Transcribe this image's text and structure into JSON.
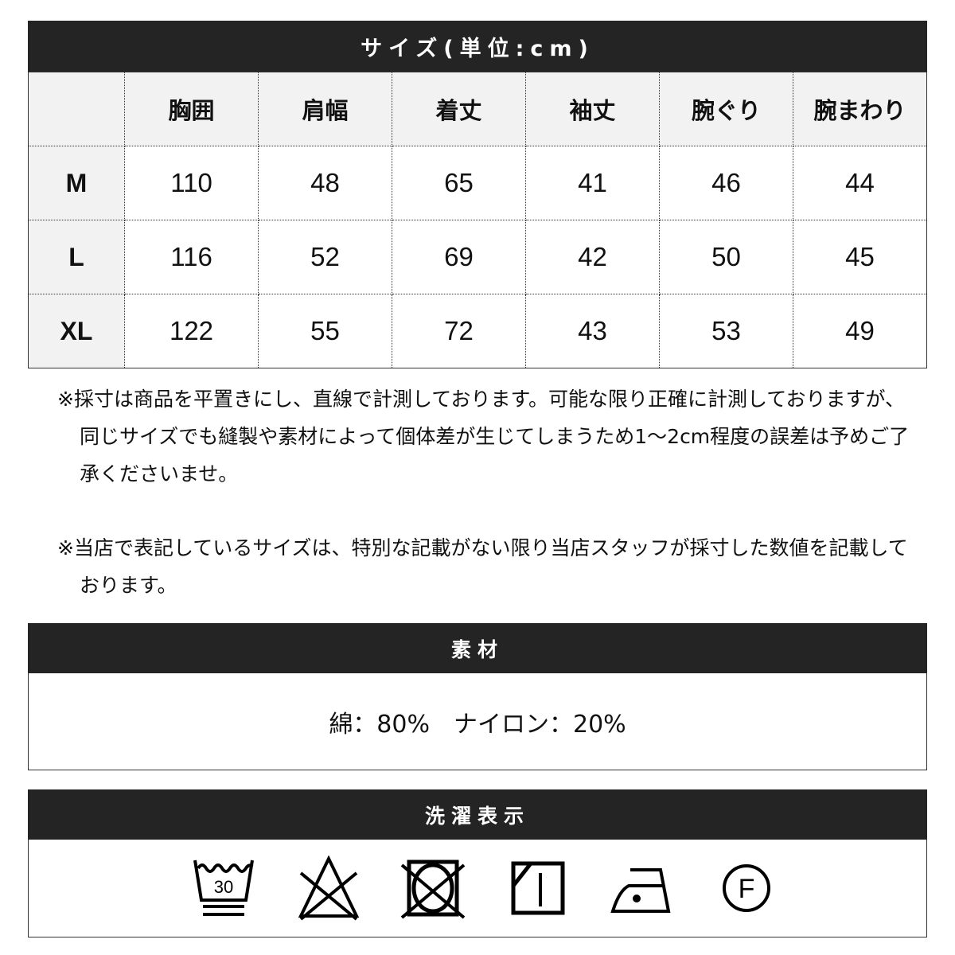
{
  "size_section": {
    "title": "サイズ(単位:cm)",
    "columns": [
      "",
      "胸囲",
      "肩幅",
      "着丈",
      "袖丈",
      "腕ぐり",
      "腕まわり"
    ],
    "rows": [
      {
        "size": "M",
        "values": [
          "110",
          "48",
          "65",
          "41",
          "46",
          "44"
        ]
      },
      {
        "size": "L",
        "values": [
          "116",
          "52",
          "69",
          "42",
          "50",
          "45"
        ]
      },
      {
        "size": "XL",
        "values": [
          "122",
          "55",
          "72",
          "43",
          "53",
          "49"
        ]
      }
    ]
  },
  "notes": [
    "※採寸は商品を平置きにし、直線で計測しております。可能な限り正確に計測しておりますが、同じサイズでも縫製や素材によって個体差が生じてしまうため1～2cm程度の誤差は予めご了承くださいませ。",
    "※当店で表記しているサイズは、特別な記載がない限り当店スタッフが採寸した数値を記載しております。"
  ],
  "material_section": {
    "title": "素材",
    "text": "綿：80%　ナイロン：20%"
  },
  "care_section": {
    "title": "洗濯表示",
    "icons": [
      {
        "name": "wash-30-very-gentle-icon",
        "label": "30"
      },
      {
        "name": "no-bleach-icon"
      },
      {
        "name": "no-tumble-dry-icon"
      },
      {
        "name": "drip-dry-shade-icon"
      },
      {
        "name": "iron-low-icon"
      },
      {
        "name": "dry-clean-f-icon",
        "label": "F"
      }
    ]
  }
}
